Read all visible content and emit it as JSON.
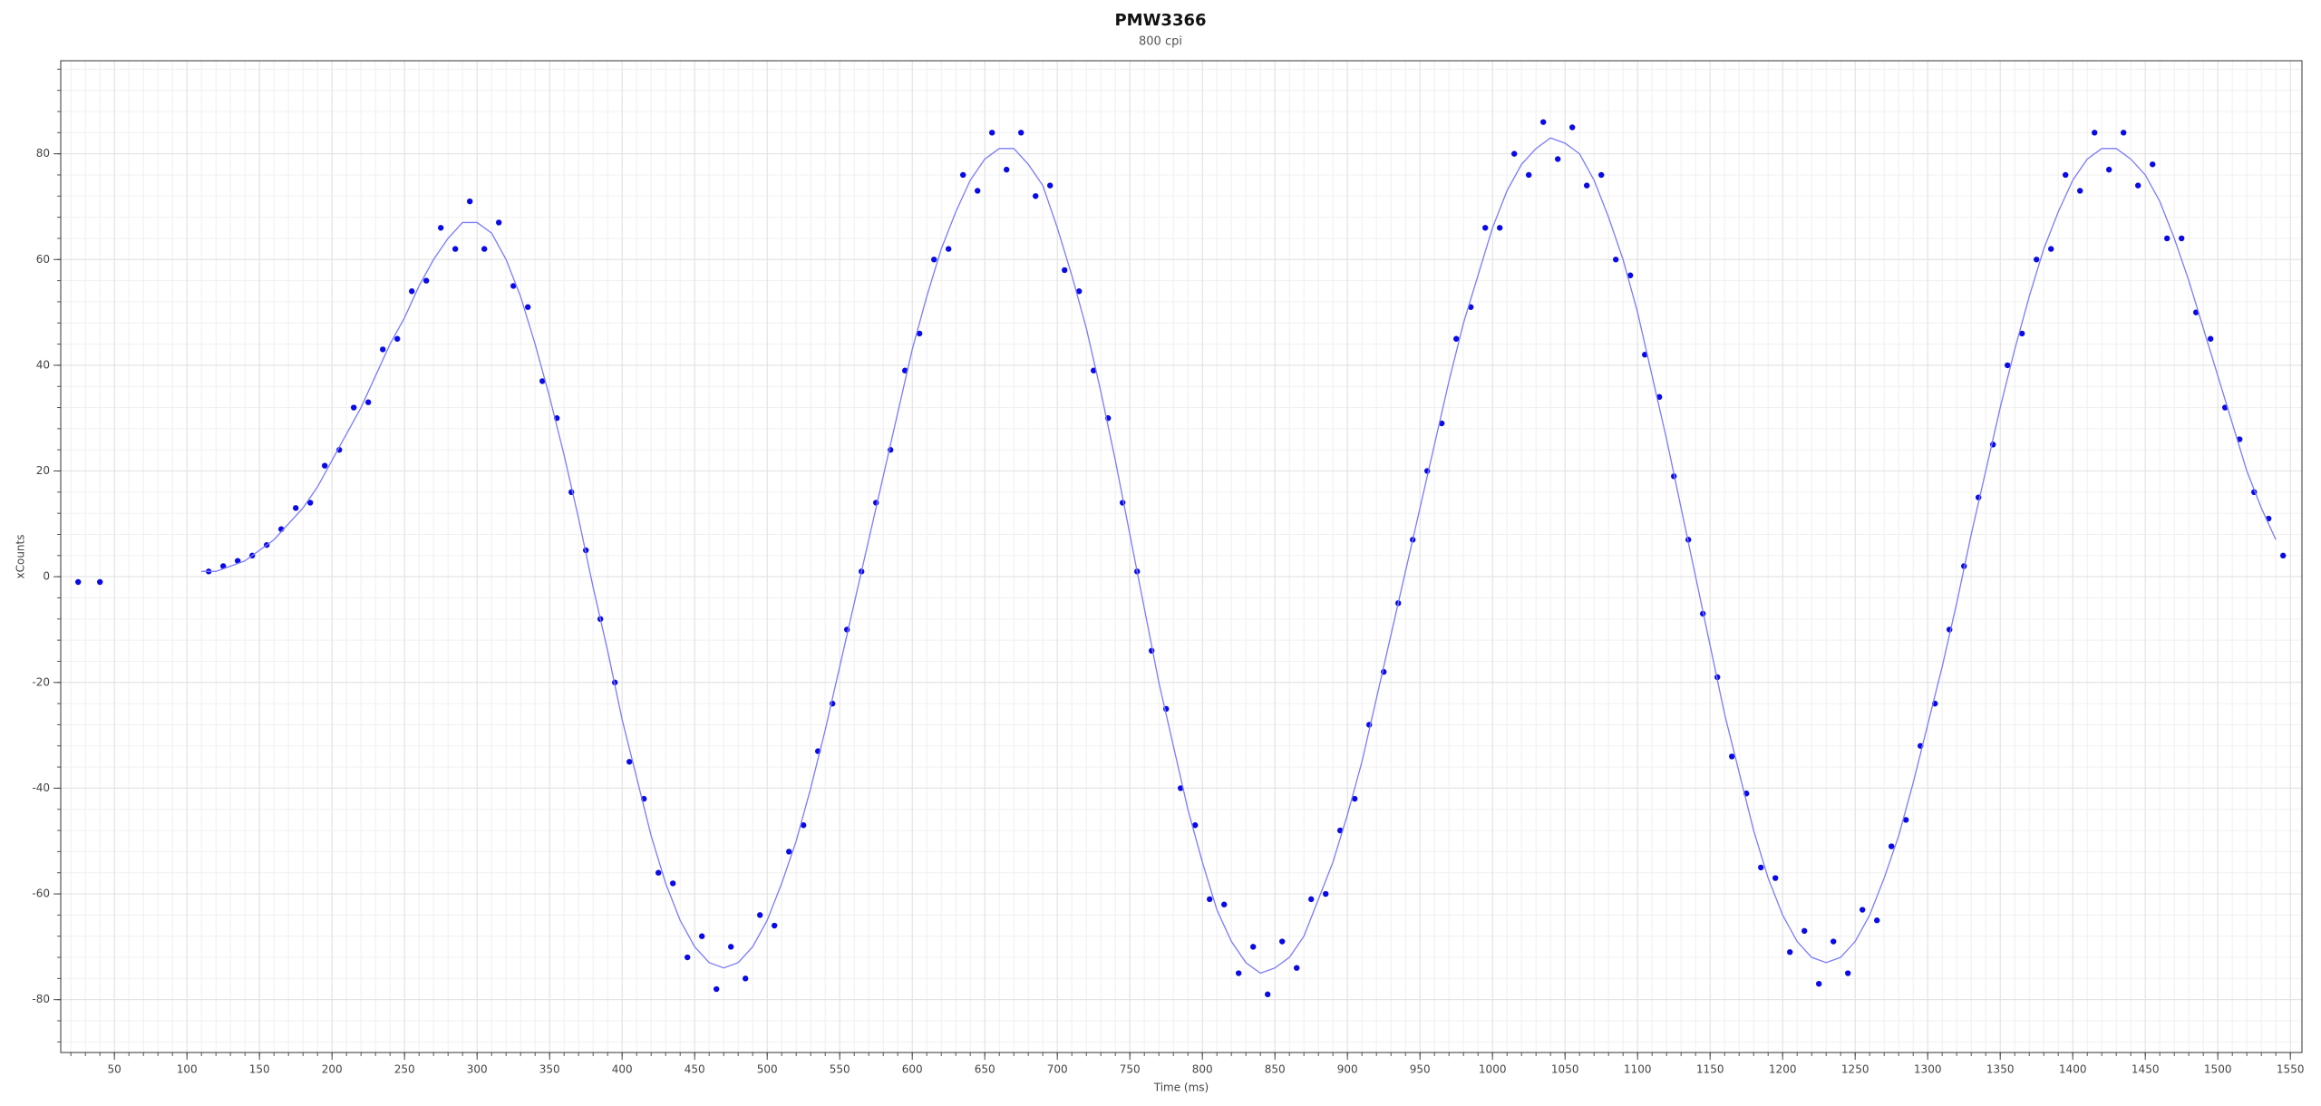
{
  "chart_data": {
    "type": "scatter",
    "title": "PMW3366",
    "subtitle": "800 cpi",
    "x_label": "Time (ms)",
    "y_label": "xCounts",
    "xlim": [
      13,
      1558
    ],
    "ylim": [
      -90,
      97.6
    ],
    "xticks": [
      50,
      100,
      150,
      200,
      250,
      300,
      350,
      400,
      450,
      500,
      550,
      600,
      650,
      700,
      750,
      800,
      850,
      900,
      950,
      1000,
      1050,
      1100,
      1150,
      1200,
      1250,
      1300,
      1350,
      1400,
      1450,
      1500,
      1550
    ],
    "yticks": [
      -80,
      -60,
      -40,
      -20,
      0,
      20,
      40,
      60,
      80
    ],
    "grid": true,
    "minor_grid": true,
    "series": [
      {
        "mode": "markers",
        "color": "#0a0ae6",
        "x": [
          25,
          40,
          115,
          125,
          135,
          145,
          155,
          165,
          175,
          185,
          195,
          205,
          215,
          225,
          235,
          245,
          255,
          265,
          275,
          285,
          295,
          305,
          315,
          325,
          335,
          345,
          355,
          365,
          375,
          385,
          395,
          405,
          415,
          425,
          435,
          445,
          455,
          465,
          475,
          485,
          495,
          505,
          515,
          525,
          535,
          545,
          555,
          565,
          575,
          585,
          595,
          605,
          615,
          625,
          635,
          645,
          655,
          665,
          675,
          685,
          695,
          705,
          715,
          725,
          735,
          745,
          755,
          765,
          775,
          785,
          795,
          805,
          815,
          825,
          835,
          845,
          855,
          865,
          875,
          885,
          895,
          905,
          915,
          925,
          935,
          945,
          955,
          965,
          975,
          985,
          995,
          1005,
          1015,
          1025,
          1035,
          1045,
          1055,
          1065,
          1075,
          1085,
          1095,
          1105,
          1115,
          1125,
          1135,
          1145,
          1155,
          1165,
          1175,
          1185,
          1195,
          1205,
          1215,
          1225,
          1235,
          1245,
          1255,
          1265,
          1275,
          1285,
          1295,
          1305,
          1315,
          1325,
          1335,
          1345,
          1355,
          1365,
          1375,
          1385,
          1395,
          1405,
          1415,
          1425,
          1435,
          1445,
          1455,
          1465,
          1475,
          1485,
          1495,
          1505,
          1515,
          1525,
          1535,
          1545
        ],
        "values": [
          -1,
          -1,
          1,
          2,
          3,
          4,
          6,
          9,
          13,
          14,
          21,
          24,
          32,
          33,
          43,
          45,
          54,
          56,
          66,
          62,
          71,
          62,
          67,
          55,
          51,
          37,
          30,
          16,
          5,
          -8,
          -20,
          -35,
          -42,
          -56,
          -58,
          -72,
          -68,
          -78,
          -70,
          -76,
          -64,
          -66,
          -52,
          -47,
          -33,
          -24,
          -10,
          1,
          14,
          24,
          39,
          46,
          60,
          62,
          76,
          73,
          84,
          77,
          84,
          72,
          74,
          58,
          54,
          39,
          30,
          14,
          1,
          -14,
          -25,
          -40,
          -47,
          -61,
          -62,
          -75,
          -70,
          -79,
          -69,
          -74,
          -61,
          -60,
          -48,
          -42,
          -28,
          -18,
          -5,
          7,
          20,
          29,
          45,
          51,
          66,
          66,
          80,
          76,
          86,
          79,
          85,
          74,
          76,
          60,
          57,
          42,
          34,
          19,
          7,
          -7,
          -19,
          -34,
          -41,
          -55,
          -57,
          -71,
          -67,
          -77,
          -69,
          -75,
          -63,
          -65,
          -51,
          -46,
          -32,
          -24,
          -10,
          2,
          15,
          25,
          40,
          46,
          60,
          62,
          76,
          73,
          84,
          77,
          84,
          74,
          78,
          64,
          64,
          50,
          45,
          32,
          26,
          16,
          11,
          4
        ]
      },
      {
        "mode": "lines",
        "color": "#7a7aff",
        "x": [
          110,
          120,
          130,
          140,
          150,
          160,
          170,
          180,
          190,
          200,
          210,
          220,
          230,
          240,
          250,
          260,
          270,
          280,
          290,
          300,
          310,
          320,
          330,
          340,
          350,
          360,
          370,
          380,
          390,
          400,
          410,
          420,
          430,
          440,
          450,
          460,
          470,
          480,
          490,
          500,
          510,
          520,
          530,
          540,
          550,
          560,
          570,
          580,
          590,
          600,
          610,
          620,
          630,
          640,
          650,
          660,
          670,
          680,
          690,
          700,
          710,
          720,
          730,
          740,
          750,
          760,
          770,
          780,
          790,
          800,
          810,
          820,
          830,
          840,
          850,
          860,
          870,
          880,
          890,
          900,
          910,
          920,
          930,
          940,
          950,
          960,
          970,
          980,
          990,
          1000,
          1010,
          1020,
          1030,
          1040,
          1050,
          1060,
          1070,
          1080,
          1090,
          1100,
          1110,
          1120,
          1130,
          1140,
          1150,
          1160,
          1170,
          1180,
          1190,
          1200,
          1210,
          1220,
          1230,
          1240,
          1250,
          1260,
          1270,
          1280,
          1290,
          1300,
          1310,
          1320,
          1330,
          1340,
          1350,
          1360,
          1370,
          1380,
          1390,
          1400,
          1410,
          1420,
          1430,
          1440,
          1450,
          1460,
          1470,
          1480,
          1490,
          1500,
          1510,
          1520,
          1530,
          1540
        ],
        "values": [
          1,
          1,
          2,
          3,
          5,
          7,
          10,
          13,
          17,
          22,
          27,
          32,
          38,
          44,
          49,
          55,
          60,
          64,
          67,
          67,
          65,
          60,
          53,
          44,
          34,
          23,
          11,
          -2,
          -14,
          -27,
          -38,
          -49,
          -58,
          -65,
          -70,
          -73,
          -74,
          -73,
          -70,
          -65,
          -58,
          -50,
          -40,
          -29,
          -17,
          -5,
          7,
          19,
          31,
          43,
          53,
          62,
          69,
          75,
          79,
          81,
          81,
          78,
          74,
          66,
          57,
          47,
          35,
          22,
          8,
          -6,
          -20,
          -32,
          -44,
          -54,
          -63,
          -69,
          -73,
          -75,
          -74,
          -72,
          -68,
          -61,
          -54,
          -45,
          -35,
          -23,
          -11,
          1,
          13,
          25,
          37,
          48,
          57,
          66,
          73,
          78,
          81,
          83,
          82,
          80,
          75,
          68,
          60,
          50,
          38,
          26,
          13,
          0,
          -13,
          -26,
          -37,
          -48,
          -57,
          -64,
          -69,
          -72,
          -73,
          -72,
          -69,
          -64,
          -57,
          -49,
          -39,
          -28,
          -17,
          -5,
          8,
          20,
          32,
          43,
          53,
          62,
          69,
          75,
          79,
          81,
          81,
          79,
          76,
          71,
          64,
          56,
          47,
          38,
          29,
          20,
          13,
          7
        ]
      }
    ]
  }
}
